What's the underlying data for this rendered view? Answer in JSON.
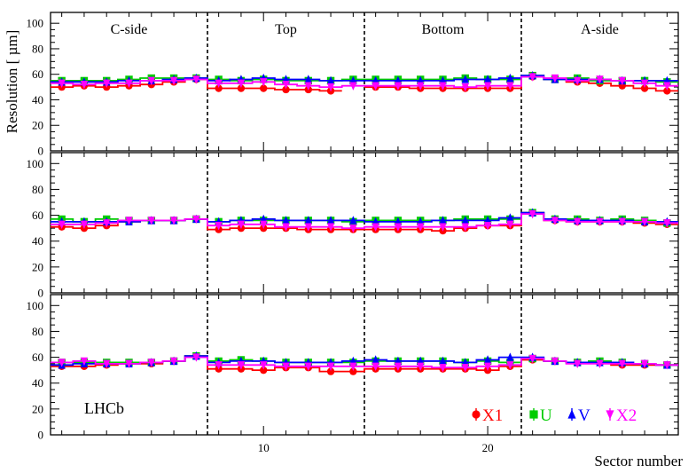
{
  "chart_data": {
    "type": "line",
    "title": "",
    "xlabel": "Sector number",
    "ylabel": "Resolution [ µm]",
    "x_range": [
      0.5,
      28.5
    ],
    "y_range": [
      0,
      105
    ],
    "x_ticks": [
      10,
      20
    ],
    "y_ticks": [
      0,
      20,
      40,
      60,
      80,
      100
    ],
    "regions": [
      {
        "label": "C-side",
        "from": 0.5,
        "to": 7.5
      },
      {
        "label": "Top",
        "from": 7.5,
        "to": 14.5
      },
      {
        "label": "Bottom",
        "from": 14.5,
        "to": 21.5
      },
      {
        "label": "A-side",
        "from": 21.5,
        "to": 28.5
      }
    ],
    "dividers": [
      7.5,
      14.5,
      21.5
    ],
    "experiment_label": "LHCb",
    "x": [
      1,
      2,
      3,
      4,
      5,
      6,
      7,
      8,
      9,
      10,
      11,
      12,
      13,
      14,
      15,
      16,
      17,
      18,
      19,
      20,
      21,
      22,
      23,
      24,
      25,
      26,
      27,
      28
    ],
    "panels": [
      {
        "series": [
          {
            "name": "X1",
            "color": "#ff0000",
            "marker": "circle",
            "values": [
              50,
              51,
              50,
              51,
              52,
              54,
              56,
              49,
              49,
              49,
              48,
              48,
              47,
              null,
              50,
              50,
              49,
              49,
              49,
              49,
              49,
              58,
              56,
              54,
              53,
              51,
              49,
              47
            ]
          },
          {
            "name": "U",
            "color": "#00cc00",
            "marker": "square",
            "values": [
              55,
              55,
              55,
              56,
              57,
              57,
              57,
              56,
              55,
              56,
              55,
              55,
              55,
              56,
              56,
              56,
              56,
              56,
              57,
              56,
              56,
              59,
              56,
              57,
              55,
              55,
              55,
              54
            ]
          },
          {
            "name": "V",
            "color": "#0000ff",
            "marker": "triangle-up",
            "values": [
              54,
              54,
              54,
              55,
              55,
              56,
              57,
              55,
              56,
              57,
              56,
              56,
              55,
              55,
              55,
              55,
              55,
              55,
              56,
              56,
              57,
              59,
              56,
              56,
              56,
              55,
              55,
              55
            ]
          },
          {
            "name": "X2",
            "color": "#ff00ff",
            "marker": "triangle-down",
            "values": [
              53,
              52,
              53,
              53,
              55,
              55,
              56,
              53,
              53,
              54,
              52,
              51,
              50,
              51,
              51,
              51,
              51,
              51,
              50,
              51,
              51,
              58,
              57,
              55,
              56,
              55,
              53,
              51
            ]
          }
        ]
      },
      {
        "series": [
          {
            "name": "X1",
            "color": "#ff0000",
            "marker": "circle",
            "values": [
              51,
              50,
              52,
              55,
              56,
              56,
              57,
              49,
              50,
              50,
              50,
              49,
              49,
              49,
              49,
              49,
              49,
              48,
              50,
              52,
              52,
              62,
              56,
              55,
              55,
              55,
              54,
              53
            ]
          },
          {
            "name": "U",
            "color": "#00cc00",
            "marker": "square",
            "values": [
              57,
              55,
              57,
              56,
              56,
              56,
              57,
              55,
              56,
              56,
              56,
              56,
              56,
              55,
              56,
              56,
              56,
              56,
              57,
              57,
              57,
              62,
              57,
              57,
              56,
              57,
              56,
              54
            ]
          },
          {
            "name": "V",
            "color": "#0000ff",
            "marker": "triangle-up",
            "values": [
              55,
              55,
              55,
              55,
              56,
              56,
              57,
              55,
              56,
              57,
              56,
              56,
              56,
              56,
              55,
              55,
              55,
              56,
              56,
              56,
              58,
              62,
              57,
              56,
              56,
              56,
              55,
              55
            ]
          },
          {
            "name": "X2",
            "color": "#ff00ff",
            "marker": "triangle-down",
            "values": [
              53,
              53,
              54,
              56,
              56,
              56,
              57,
              52,
              53,
              53,
              51,
              51,
              51,
              50,
              51,
              51,
              51,
              51,
              51,
              52,
              53,
              61,
              56,
              55,
              55,
              55,
              55,
              54
            ]
          }
        ]
      },
      {
        "series": [
          {
            "name": "X1",
            "color": "#ff0000",
            "marker": "circle",
            "values": [
              53,
              53,
              54,
              55,
              55,
              57,
              61,
              51,
              51,
              50,
              52,
              52,
              49,
              49,
              51,
              51,
              51,
              51,
              51,
              50,
              53,
              58,
              57,
              56,
              56,
              54,
              54,
              54
            ]
          },
          {
            "name": "U",
            "color": "#00cc00",
            "marker": "square",
            "values": [
              56,
              56,
              56,
              56,
              56,
              57,
              61,
              57,
              58,
              57,
              56,
              56,
              56,
              56,
              57,
              57,
              57,
              57,
              56,
              57,
              56,
              59,
              57,
              56,
              57,
              56,
              55,
              54
            ]
          },
          {
            "name": "V",
            "color": "#0000ff",
            "marker": "triangle-up",
            "values": [
              54,
              55,
              55,
              55,
              56,
              57,
              61,
              56,
              57,
              57,
              56,
              56,
              56,
              57,
              58,
              57,
              57,
              57,
              56,
              58,
              60,
              60,
              57,
              56,
              56,
              56,
              55,
              54
            ]
          },
          {
            "name": "X2",
            "color": "#ff00ff",
            "marker": "triangle-down",
            "values": [
              56,
              57,
              55,
              55,
              56,
              57,
              60,
              54,
              54,
              54,
              53,
              53,
              53,
              53,
              53,
              53,
              53,
              52,
              52,
              53,
              54,
              59,
              57,
              55,
              55,
              55,
              55,
              54
            ]
          }
        ]
      }
    ],
    "legend": [
      {
        "name": "X1",
        "color": "#ff0000",
        "marker": "circle"
      },
      {
        "name": "U",
        "color": "#00cc00",
        "marker": "square"
      },
      {
        "name": "V",
        "color": "#0000ff",
        "marker": "triangle-up"
      },
      {
        "name": "X2",
        "color": "#ff00ff",
        "marker": "triangle-down"
      }
    ]
  }
}
